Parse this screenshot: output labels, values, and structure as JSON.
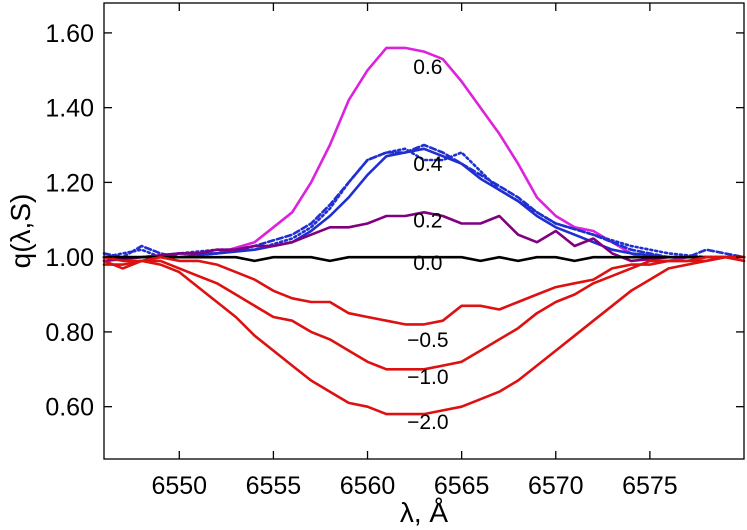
{
  "chart_data": {
    "type": "line",
    "xlabel": "λ, Å",
    "ylabel": "q(λ,S)",
    "xlim": [
      6546,
      6580
    ],
    "ylim": [
      0.46,
      1.68
    ],
    "xticks": [
      6550,
      6555,
      6560,
      6565,
      6570,
      6575
    ],
    "yticks": [
      0.6,
      0.8,
      1.0,
      1.2,
      1.4,
      1.6
    ],
    "ytick_labels": [
      "0.60",
      "0.80",
      "1.00",
      "1.20",
      "1.40",
      "1.60"
    ],
    "grid": false,
    "annotations": [
      {
        "text": "0.6",
        "x": 6563.2,
        "y": 1.49
      },
      {
        "text": "0.4",
        "x": 6563.2,
        "y": 1.23
      },
      {
        "text": "0.2",
        "x": 6563.2,
        "y": 1.08
      },
      {
        "text": "0.0",
        "x": 6563.2,
        "y": 0.965
      },
      {
        "text": "−0.5",
        "x": 6563.2,
        "y": 0.76
      },
      {
        "text": "−1.0",
        "x": 6563.2,
        "y": 0.66
      },
      {
        "text": "−2.0",
        "x": 6563.2,
        "y": 0.54
      }
    ],
    "series": [
      {
        "color": "#dd22dd",
        "dash": "solid",
        "x": [
          6546,
          6548,
          6550,
          6552,
          6554,
          6555,
          6556,
          6557,
          6558,
          6559,
          6560,
          6561,
          6562,
          6563,
          6564,
          6565,
          6566,
          6567,
          6568,
          6569,
          6570,
          6571,
          6572,
          6573,
          6574,
          6575,
          6576,
          6577,
          6578,
          6579,
          6580
        ],
        "y": [
          1.0,
          1.0,
          1.0,
          1.01,
          1.04,
          1.08,
          1.12,
          1.2,
          1.3,
          1.42,
          1.5,
          1.56,
          1.56,
          1.55,
          1.53,
          1.47,
          1.4,
          1.33,
          1.25,
          1.16,
          1.11,
          1.08,
          1.07,
          1.04,
          1.01,
          0.99,
          0.99,
          1.0,
          1.0,
          1.0,
          1.0
        ]
      },
      {
        "color": "#1f2fd0",
        "dash": "solid",
        "x": [
          6546,
          6548,
          6550,
          6552,
          6554,
          6556,
          6557,
          6558,
          6559,
          6560,
          6561,
          6562,
          6563,
          6564,
          6565,
          6566,
          6567,
          6568,
          6569,
          6570,
          6571,
          6572,
          6573,
          6574,
          6576,
          6578,
          6580
        ],
        "y": [
          1.0,
          1.0,
          1.01,
          1.01,
          1.02,
          1.04,
          1.07,
          1.11,
          1.16,
          1.22,
          1.27,
          1.28,
          1.29,
          1.27,
          1.25,
          1.21,
          1.18,
          1.15,
          1.11,
          1.08,
          1.06,
          1.04,
          1.02,
          1.01,
          1.0,
          1.0,
          1.0
        ]
      },
      {
        "color": "#1f2fd0",
        "dash": "dash",
        "x": [
          6546,
          6547,
          6548,
          6549,
          6550,
          6552,
          6554,
          6556,
          6557,
          6558,
          6559,
          6560,
          6561,
          6562,
          6563,
          6564,
          6565,
          6566,
          6567,
          6568,
          6569,
          6570,
          6572,
          6574,
          6576,
          6577,
          6578,
          6580
        ],
        "y": [
          1.01,
          1.0,
          1.03,
          1.01,
          1.0,
          1.01,
          1.03,
          1.06,
          1.09,
          1.14,
          1.2,
          1.26,
          1.28,
          1.28,
          1.3,
          1.28,
          1.25,
          1.22,
          1.19,
          1.16,
          1.12,
          1.09,
          1.06,
          1.02,
          1.0,
          1.0,
          1.02,
          1.0
        ]
      },
      {
        "color": "#1f2fd0",
        "dash": "dot",
        "x": [
          6546,
          6547,
          6548,
          6549,
          6550,
          6552,
          6554,
          6556,
          6557,
          6558,
          6559,
          6560,
          6561,
          6562,
          6563,
          6564,
          6565,
          6566,
          6567,
          6568,
          6569,
          6570,
          6572,
          6574,
          6576,
          6578,
          6580
        ],
        "y": [
          1.0,
          1.01,
          1.02,
          1.0,
          1.01,
          1.02,
          1.02,
          1.05,
          1.08,
          1.13,
          1.2,
          1.26,
          1.28,
          1.29,
          1.26,
          1.26,
          1.28,
          1.23,
          1.18,
          1.15,
          1.12,
          1.09,
          1.06,
          1.03,
          1.01,
          1.0,
          1.0
        ]
      },
      {
        "color": "#800080",
        "dash": "solid",
        "x": [
          6546,
          6548,
          6550,
          6551,
          6552,
          6553,
          6554,
          6555,
          6556,
          6557,
          6558,
          6559,
          6560,
          6561,
          6562,
          6563,
          6564,
          6565,
          6566,
          6567,
          6568,
          6569,
          6570,
          6571,
          6572,
          6573,
          6574,
          6576,
          6578,
          6580
        ],
        "y": [
          0.99,
          1.0,
          1.01,
          1.01,
          1.02,
          1.02,
          1.03,
          1.03,
          1.04,
          1.06,
          1.08,
          1.08,
          1.09,
          1.11,
          1.11,
          1.12,
          1.11,
          1.09,
          1.09,
          1.11,
          1.06,
          1.04,
          1.07,
          1.03,
          1.05,
          1.01,
          0.99,
          1.0,
          1.0,
          1.0
        ]
      },
      {
        "color": "#000000",
        "dash": "solid",
        "x": [
          6546,
          6548,
          6550,
          6552,
          6553,
          6554,
          6555,
          6556,
          6557,
          6558,
          6559,
          6560,
          6561,
          6562,
          6563,
          6564,
          6565,
          6566,
          6567,
          6568,
          6569,
          6570,
          6571,
          6572,
          6574,
          6576,
          6578,
          6580
        ],
        "y": [
          1.0,
          1.0,
          1.0,
          1.0,
          1.0,
          0.99,
          1.0,
          1.0,
          1.0,
          0.99,
          1.0,
          1.0,
          1.0,
          1.0,
          1.0,
          1.0,
          1.0,
          0.99,
          1.0,
          0.99,
          1.0,
          1.0,
          0.99,
          1.0,
          1.0,
          1.0,
          1.0,
          1.0
        ]
      },
      {
        "color": "#dd1111",
        "dash": "solid",
        "x": [
          6546,
          6547,
          6548,
          6549,
          6550,
          6551,
          6552,
          6553,
          6554,
          6555,
          6556,
          6557,
          6558,
          6559,
          6560,
          6561,
          6562,
          6563,
          6564,
          6565,
          6566,
          6567,
          6568,
          6569,
          6570,
          6571,
          6572,
          6573,
          6574,
          6575,
          6576,
          6577,
          6578,
          6579,
          6580
        ],
        "y": [
          1.0,
          0.99,
          0.99,
          1.0,
          0.99,
          0.99,
          0.98,
          0.96,
          0.94,
          0.91,
          0.89,
          0.88,
          0.88,
          0.85,
          0.84,
          0.83,
          0.82,
          0.82,
          0.83,
          0.87,
          0.87,
          0.86,
          0.88,
          0.9,
          0.92,
          0.93,
          0.94,
          0.97,
          0.98,
          0.98,
          0.99,
          0.99,
          0.99,
          1.0,
          1.0
        ]
      },
      {
        "color": "#dd1111",
        "dash": "solid",
        "x": [
          6546,
          6547,
          6548,
          6549,
          6550,
          6551,
          6552,
          6553,
          6554,
          6555,
          6556,
          6557,
          6558,
          6559,
          6560,
          6561,
          6562,
          6563,
          6564,
          6565,
          6566,
          6567,
          6568,
          6569,
          6570,
          6571,
          6572,
          6573,
          6574,
          6575,
          6576,
          6577,
          6578,
          6579,
          6580
        ],
        "y": [
          0.98,
          0.98,
          0.99,
          0.99,
          0.97,
          0.95,
          0.93,
          0.9,
          0.87,
          0.84,
          0.83,
          0.8,
          0.78,
          0.75,
          0.72,
          0.7,
          0.7,
          0.7,
          0.71,
          0.72,
          0.75,
          0.78,
          0.81,
          0.85,
          0.88,
          0.9,
          0.93,
          0.95,
          0.97,
          0.99,
          0.99,
          0.99,
          1.0,
          1.0,
          1.0
        ]
      },
      {
        "color": "#dd1111",
        "dash": "solid",
        "x": [
          6546,
          6547,
          6548,
          6549,
          6550,
          6551,
          6552,
          6553,
          6554,
          6555,
          6556,
          6557,
          6558,
          6559,
          6560,
          6561,
          6562,
          6563,
          6564,
          6565,
          6566,
          6567,
          6568,
          6569,
          6570,
          6571,
          6572,
          6573,
          6574,
          6575,
          6576,
          6577,
          6578,
          6579,
          6580
        ],
        "y": [
          0.99,
          0.97,
          0.99,
          0.98,
          0.96,
          0.92,
          0.88,
          0.84,
          0.79,
          0.75,
          0.71,
          0.67,
          0.64,
          0.61,
          0.6,
          0.58,
          0.58,
          0.58,
          0.59,
          0.6,
          0.62,
          0.64,
          0.67,
          0.71,
          0.75,
          0.79,
          0.83,
          0.87,
          0.91,
          0.94,
          0.97,
          0.98,
          0.99,
          1.0,
          0.99
        ]
      }
    ]
  }
}
